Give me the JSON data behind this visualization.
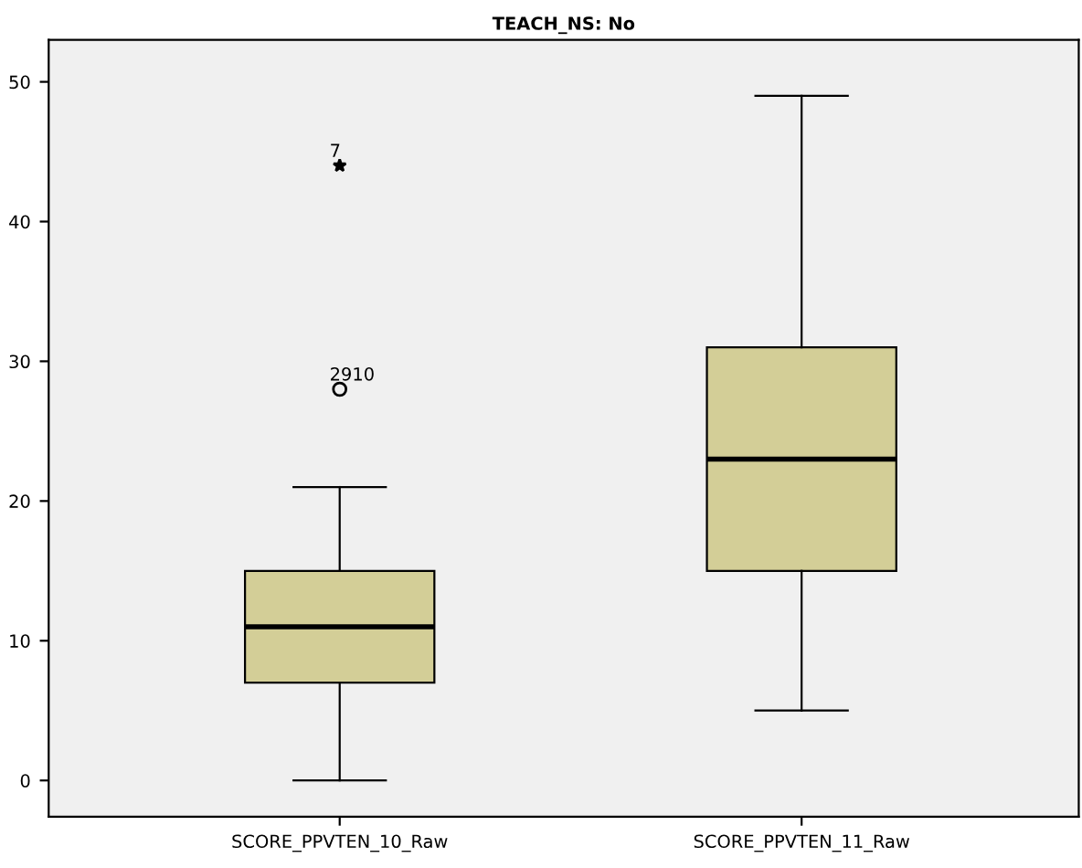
{
  "chart_data": {
    "type": "box",
    "title": "TEACH_NS: No",
    "categories": [
      "SCORE_PPVTEN_10_Raw",
      "SCORE_PPVTEN_11_Raw"
    ],
    "boxes": [
      {
        "low": 0,
        "q1": 7,
        "median": 11,
        "q3": 15,
        "high": 21,
        "outliers": [
          44,
          28
        ]
      },
      {
        "low": 5,
        "q1": 15,
        "median": 23,
        "q3": 31,
        "high": 49
      }
    ],
    "color": "#d3ce97",
    "ylim": [
      -2.6,
      53
    ],
    "yticks": [
      0,
      10,
      20,
      30,
      40,
      50
    ],
    "grid": false,
    "annotations": [
      "7",
      "2910"
    ]
  }
}
